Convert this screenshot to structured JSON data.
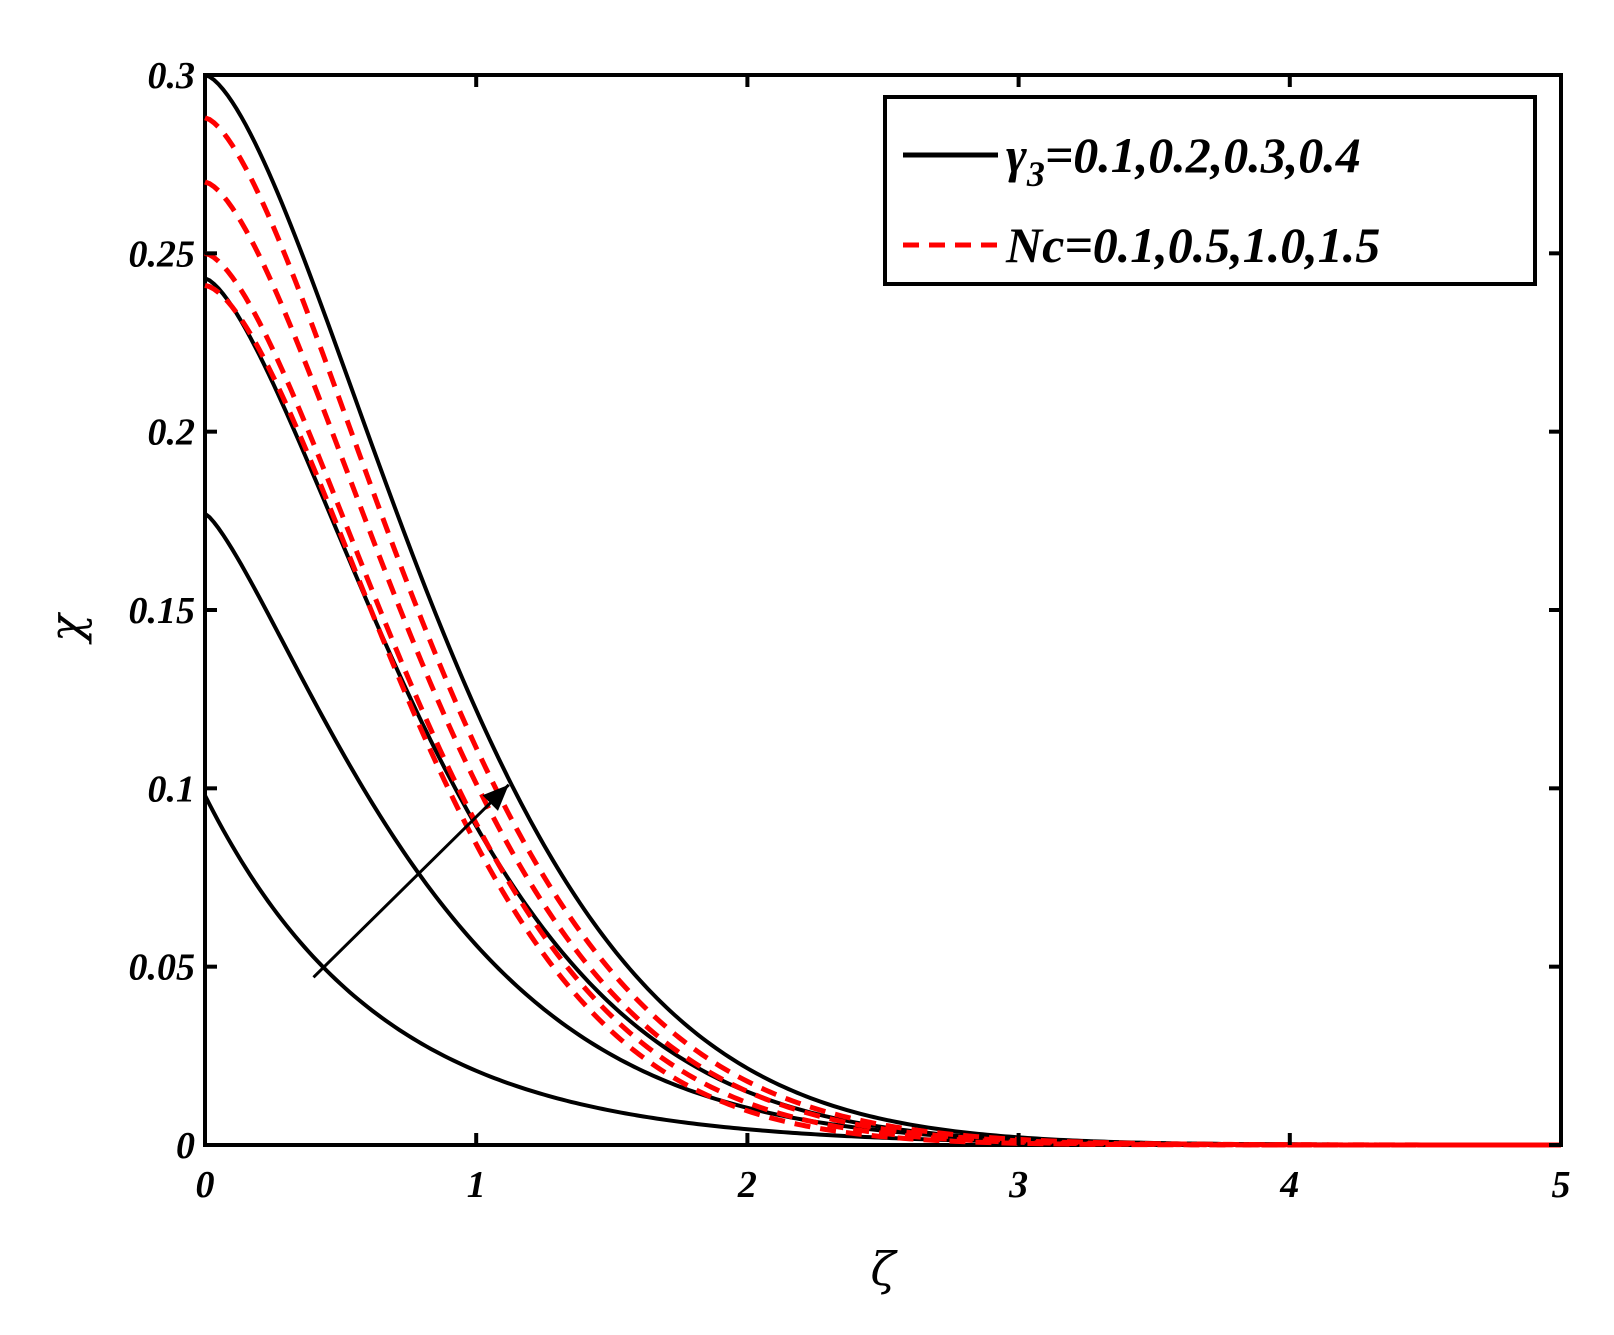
{
  "chart_data": {
    "type": "line",
    "title": "",
    "xlabel": "ζ",
    "ylabel": "χ",
    "xlim": [
      0,
      5
    ],
    "ylim": [
      0,
      0.3
    ],
    "x_ticks": [
      "0",
      "1",
      "2",
      "3",
      "4",
      "5"
    ],
    "y_ticks": [
      "0",
      "0.05",
      "0.1",
      "0.15",
      "0.2",
      "0.25",
      "0.3"
    ],
    "grid": false,
    "legend": {
      "placement": "top-right",
      "entries": [
        {
          "symbol": "γ",
          "subscript": "3",
          "values_text": "=0.1,0.2,0.3,0.4",
          "style": "solid",
          "color": "#000000"
        },
        {
          "symbol": "Nc",
          "subscript": "",
          "values_text": "=0.1,0.5,1.0,1.5",
          "style": "dashed",
          "color": "#ff0000"
        }
      ]
    },
    "annotation": {
      "type": "arrow",
      "from": [
        0.4,
        0.047
      ],
      "to": [
        1.12,
        0.101
      ]
    },
    "series": [
      {
        "group": "γ3",
        "param": 0.1,
        "style": "solid",
        "color": "#000000",
        "y0": 0.098,
        "k": 1.55,
        "p": 1.0,
        "xmax": 5
      },
      {
        "group": "γ3",
        "param": 0.2,
        "style": "solid",
        "color": "#000000",
        "y0": 0.177,
        "k": 1.15,
        "p": 1.3,
        "xmax": 5
      },
      {
        "group": "γ3",
        "param": 0.3,
        "style": "solid",
        "color": "#000000",
        "y0": 0.243,
        "k": 1.0,
        "p": 1.48,
        "xmax": 5
      },
      {
        "group": "γ3",
        "param": 0.4,
        "style": "solid",
        "color": "#000000",
        "y0": 0.3,
        "k": 0.9,
        "p": 1.55,
        "xmax": 5
      },
      {
        "group": "Nc",
        "param": 0.1,
        "style": "dashed",
        "color": "#ff0000",
        "y0": 0.241,
        "k": 1.05,
        "p": 1.62,
        "xmax": 5
      },
      {
        "group": "Nc",
        "param": 0.5,
        "style": "dashed",
        "color": "#ff0000",
        "y0": 0.25,
        "k": 1.02,
        "p": 1.58,
        "xmax": 5
      },
      {
        "group": "Nc",
        "param": 1.0,
        "style": "dashed",
        "color": "#ff0000",
        "y0": 0.27,
        "k": 0.98,
        "p": 1.56,
        "xmax": 5
      },
      {
        "group": "Nc",
        "param": 1.5,
        "style": "dashed",
        "color": "#ff0000",
        "y0": 0.288,
        "k": 0.95,
        "p": 1.55,
        "xmax": 5
      }
    ]
  }
}
